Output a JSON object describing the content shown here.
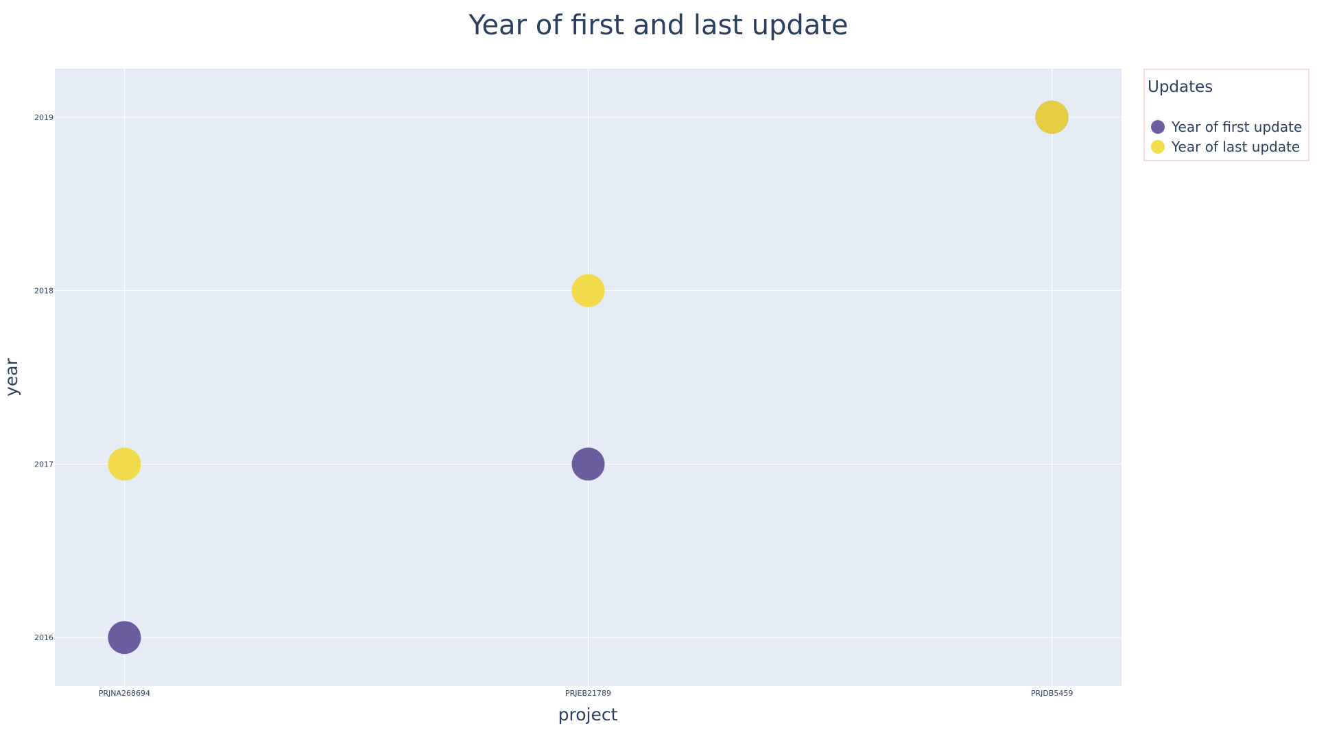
{
  "chart_data": {
    "type": "scatter",
    "title": "Year of first and last update",
    "xlabel": "project",
    "ylabel": "year",
    "categories": [
      "PRJNA268694",
      "PRJEB21789",
      "PRJDB5459"
    ],
    "yticks": [
      2016,
      2017,
      2018,
      2019
    ],
    "ylim": [
      2015.72,
      2019.28
    ],
    "grid": true,
    "legend": {
      "title": "Updates",
      "placement": "right-top"
    },
    "series": [
      {
        "name": "Year of first update",
        "color": "#5c4d94",
        "values": [
          2016,
          2017,
          2019
        ]
      },
      {
        "name": "Year of last update",
        "color": "#f2d93a",
        "values": [
          2017,
          2018,
          2019
        ]
      }
    ],
    "colors": {
      "plot_background": "#e5ecf6",
      "grid": "#ffffff",
      "text": "#2a3f5f",
      "legend_border": "#ffd6dc"
    }
  }
}
